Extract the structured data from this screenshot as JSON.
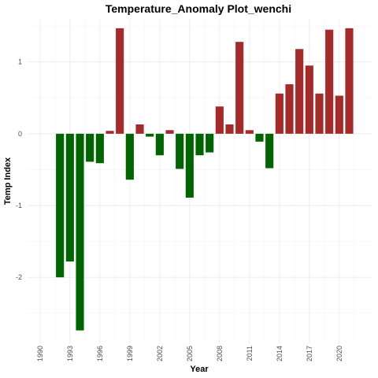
{
  "chart_data": {
    "type": "bar",
    "title": "Temperature_Anomaly Plot_wenchi",
    "xlabel": "Year",
    "ylabel": "Temp Index",
    "x": [
      1990,
      1991,
      1992,
      1993,
      1994,
      1995,
      1996,
      1997,
      1998,
      1999,
      2000,
      2001,
      2002,
      2003,
      2004,
      2005,
      2006,
      2007,
      2008,
      2009,
      2010,
      2011,
      2012,
      2013,
      2014,
      2015,
      2016,
      2017,
      2018,
      2019,
      2020,
      2021
    ],
    "values": [
      0,
      0,
      -2.0,
      -1.78,
      -2.74,
      -0.39,
      -0.41,
      0.04,
      1.47,
      -0.64,
      0.13,
      -0.04,
      -0.3,
      0.05,
      -0.49,
      -0.89,
      -0.3,
      -0.26,
      0.38,
      0.13,
      1.28,
      0.05,
      -0.11,
      -0.48,
      0.56,
      0.69,
      1.18,
      0.95,
      0.56,
      1.45,
      0.53,
      1.47
    ],
    "x_ticks": [
      1990,
      1993,
      1996,
      1999,
      2002,
      2005,
      2008,
      2011,
      2014,
      2017,
      2020
    ],
    "y_ticks": [
      -2,
      -1,
      0,
      1
    ],
    "ylim": [
      -2.92,
      1.6
    ],
    "xlim": [
      1988.75,
      2023.25
    ],
    "grid": true,
    "colors": {
      "positive": "#a52a2a",
      "negative": "#006400"
    }
  }
}
